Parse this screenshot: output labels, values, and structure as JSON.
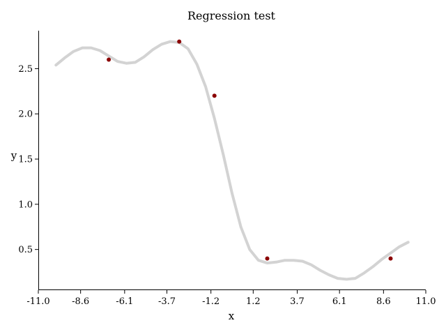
{
  "chart_data": {
    "type": "scatter",
    "title": "Regression test",
    "xlabel": "x",
    "ylabel": "y",
    "xlim": [
      -11.0,
      11.0
    ],
    "ylim": [
      0.05,
      2.92
    ],
    "xticks": [
      -11.0,
      -8.6,
      -6.1,
      -3.7,
      -1.2,
      1.2,
      3.7,
      6.1,
      8.6,
      11.0
    ],
    "xtick_labels": [
      "-11.0",
      "-8.6",
      "-6.1",
      "-3.7",
      "-1.2",
      "1.2",
      "3.7",
      "6.1",
      "8.6",
      "11.0"
    ],
    "yticks": [
      0.5,
      1.0,
      1.5,
      2.0,
      2.5
    ],
    "ytick_labels": [
      "0.5",
      "1.0",
      "1.5",
      "2.0",
      "2.5"
    ],
    "grid": false,
    "series": [
      {
        "kind": "points",
        "color": "#8b0000",
        "x": [
          -7.0,
          -3.0,
          -1.0,
          2.0,
          9.0
        ],
        "y": [
          2.6,
          2.8,
          2.2,
          0.4,
          0.4
        ]
      },
      {
        "kind": "line",
        "color": "#d3d3d3",
        "x": [
          -10.0,
          -9.5,
          -9.0,
          -8.5,
          -8.0,
          -7.5,
          -7.0,
          -6.5,
          -6.0,
          -5.5,
          -5.0,
          -4.5,
          -4.0,
          -3.5,
          -3.0,
          -2.5,
          -2.0,
          -1.5,
          -1.0,
          -0.5,
          0.0,
          0.5,
          1.0,
          1.5,
          2.0,
          2.5,
          3.0,
          3.5,
          4.0,
          4.5,
          5.0,
          5.5,
          6.0,
          6.5,
          7.0,
          7.5,
          8.0,
          8.5,
          9.0,
          9.5,
          10.0
        ],
        "y": [
          2.54,
          2.62,
          2.69,
          2.73,
          2.73,
          2.7,
          2.64,
          2.58,
          2.56,
          2.57,
          2.63,
          2.71,
          2.77,
          2.8,
          2.79,
          2.72,
          2.55,
          2.3,
          1.95,
          1.55,
          1.12,
          0.75,
          0.5,
          0.38,
          0.35,
          0.36,
          0.38,
          0.38,
          0.37,
          0.33,
          0.27,
          0.22,
          0.18,
          0.17,
          0.18,
          0.24,
          0.31,
          0.39,
          0.46,
          0.53,
          0.58
        ]
      }
    ]
  }
}
